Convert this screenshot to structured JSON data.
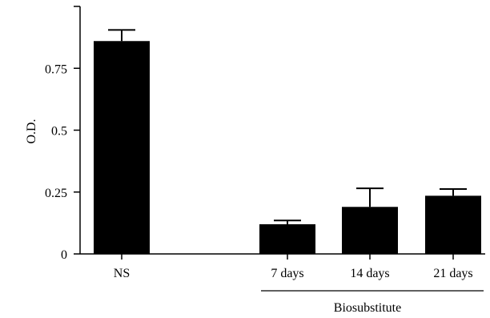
{
  "chart_data": {
    "type": "bar",
    "title": "",
    "xlabel": "",
    "ylabel": "O.D.",
    "ylim": [
      0,
      1.0
    ],
    "yticks": [
      "0",
      "0.25",
      "0.5",
      "0.75"
    ],
    "ytick_values": [
      0,
      0.25,
      0.5,
      0.75
    ],
    "categories": [
      "NS",
      "7 days",
      "14 days",
      "21 days"
    ],
    "values": [
      0.86,
      0.12,
      0.19,
      0.235
    ],
    "error_upper": [
      0.905,
      0.135,
      0.265,
      0.262
    ],
    "group_label": "Biosubstitute",
    "group_members": [
      "7 days",
      "14 days",
      "21 days"
    ],
    "grid": false,
    "bar_color": "#000000"
  }
}
